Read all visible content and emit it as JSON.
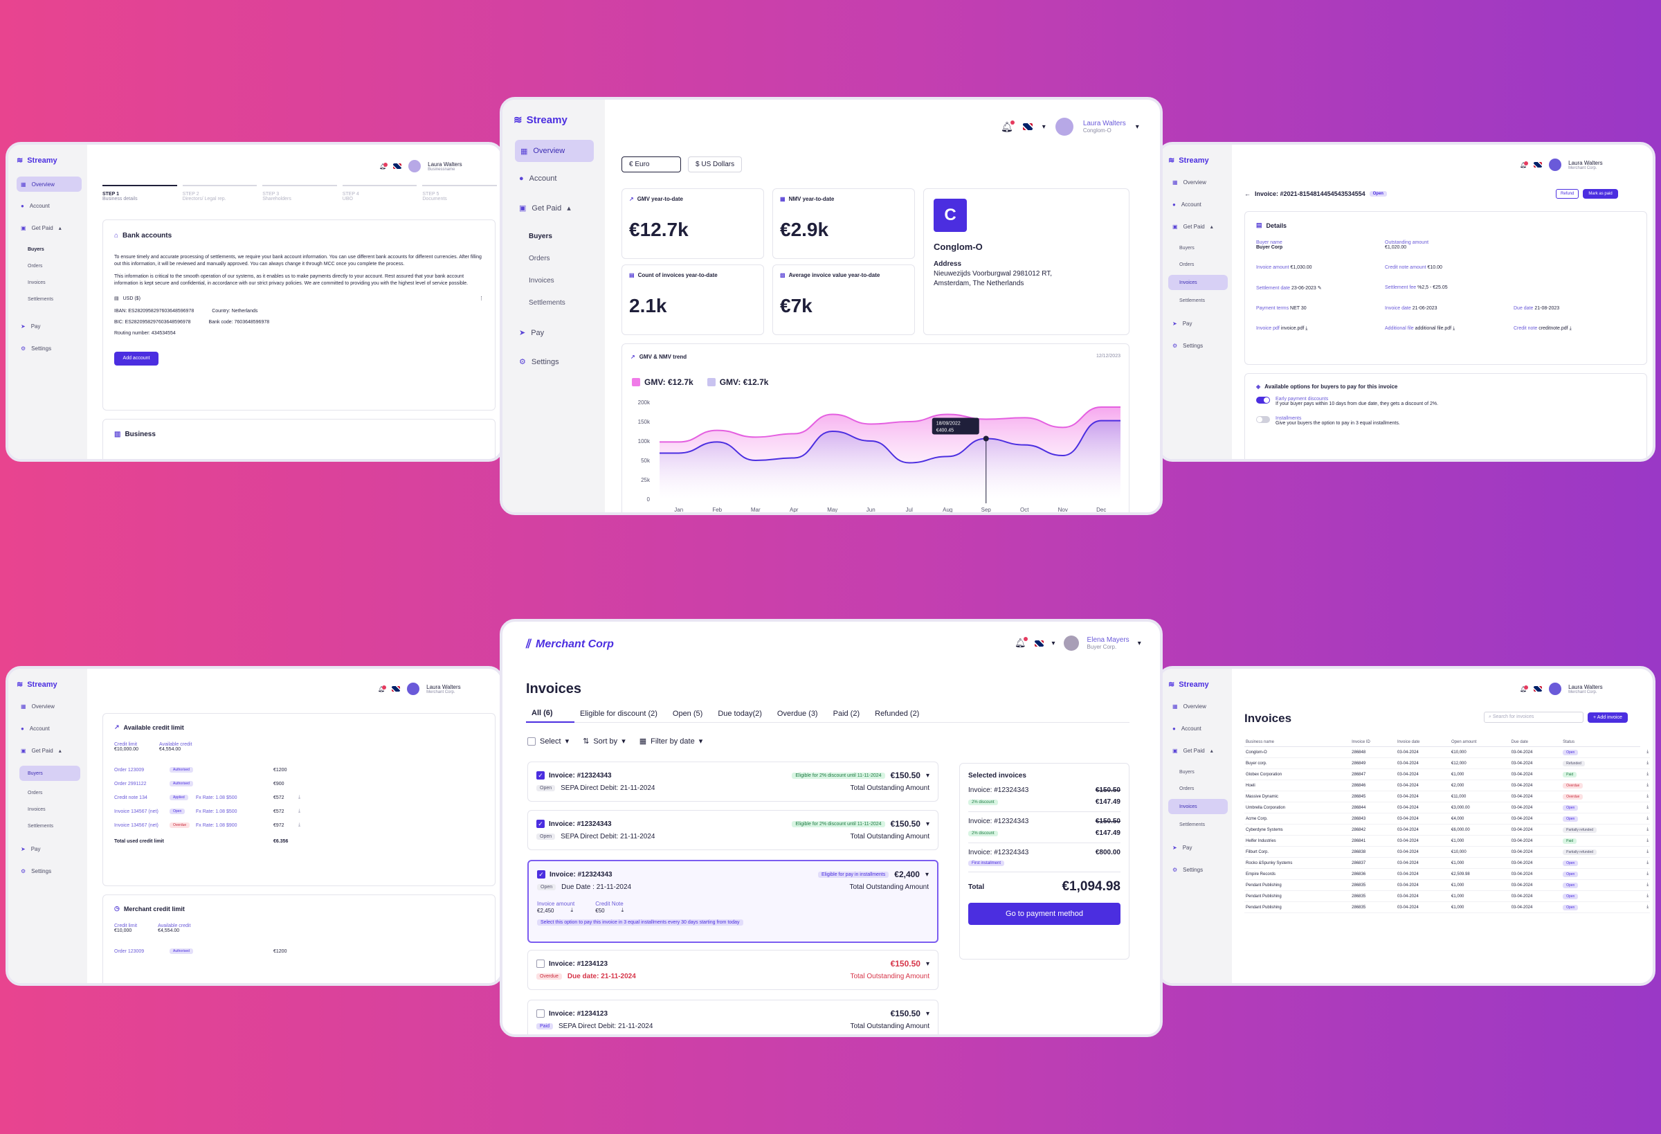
{
  "colors": {
    "accent": "#4b2ee0",
    "gmv": "#e45fe0",
    "nmv": "#4b2ee0",
    "bg_left": "#e8448f",
    "bg_right": "#9a38c6"
  },
  "brand": {
    "streamy": "Streamy",
    "merchant": "Merchant Corp"
  },
  "nav": {
    "overview": "Overview",
    "account": "Account",
    "get_paid": "Get Paid",
    "buyers": "Buyers",
    "orders": "Orders",
    "invoices": "Invoices",
    "settlements": "Settlements",
    "pay": "Pay",
    "settings": "Settings"
  },
  "users": {
    "laura": "Laura Walters",
    "laura_sub_a": "Businessname",
    "laura_sub_b": "Conglom-O",
    "laura_sub_c": "Merchant Corp.",
    "elena": "Elena Mayers",
    "elena_sub": "Buyer Corp."
  },
  "w1": {
    "steps": [
      {
        "num": "STEP 1",
        "label": "Business details"
      },
      {
        "num": "STEP 2",
        "label": "Directors/ Legal rep."
      },
      {
        "num": "STEP 3",
        "label": "Shareholders"
      },
      {
        "num": "STEP 4",
        "label": "UBO"
      },
      {
        "num": "STEP 5",
        "label": "Documents"
      }
    ],
    "title": "Bank accounts",
    "p1": "To ensure timely and accurate processing of settlements, we require your bank account information. You can use different bank accounts for different currencies. After filling out this information, it will be reviewed and manually approved. You can always change it through MCC once you complete the process.",
    "p2": "This information is critical to the smooth operation of our systems, as it enables us to make payments directly to your account. Rest assured that your bank account information is kept secure and confidential, in accordance with our strict privacy policies. We are committed to providing you with the highest level of service possible.",
    "currency": "USD ($)",
    "iban": "IBAN: ES2820958297603648596978",
    "country": "Country: Netherlands",
    "bic": "BIC: ES2820958297603648596978",
    "bank_code": "Bank code: 7603648596978",
    "routing": "Routing number: 434534554",
    "add": "Add account",
    "business": "Business"
  },
  "w2": {
    "cur_euro": "Euro",
    "cur_usd": "US Dollars",
    "gmv_label": "GMV year-to-date",
    "gmv": "€12.7k",
    "nmv_label": "NMV year-to-date",
    "nmv": "€2.9k",
    "count_label": "Count of invoices year-to-date",
    "count": "2.1k",
    "avg_label": "Average invoice value year-to-date",
    "avg": "€7k",
    "company_letter": "C",
    "company": "Conglom-O",
    "address_label": "Address",
    "address": "Nieuwezijds Voorburgwal 2981012 RT, Amsterdam, The Netherlands",
    "trend_title": "GMV & NMV trend",
    "trend_date": "12/12/2023",
    "legend_gmv": "GMV: €12.7k",
    "legend_nmv": "GMV: €12.7k",
    "tooltip_date": "18/09/2022",
    "tooltip_val": "€400.45"
  },
  "chart_data": {
    "type": "area",
    "title": "GMV & NMV trend",
    "categories": [
      "Jan",
      "Feb",
      "Mar",
      "Apr",
      "May",
      "Jun",
      "Jul",
      "Aug",
      "Sep",
      "Oct",
      "Nov",
      "Dec"
    ],
    "yticks": [
      "0",
      "25k",
      "50k",
      "100k",
      "150k",
      "200k"
    ],
    "ylim": [
      0,
      200
    ],
    "series": [
      {
        "name": "GMV: €12.7k",
        "values": [
          118,
          142,
          128,
          135,
          175,
          155,
          160,
          175,
          165,
          168,
          148,
          190
        ]
      },
      {
        "name": "GMV: €12.7k",
        "values": [
          95,
          118,
          80,
          85,
          140,
          120,
          75,
          88,
          125,
          112,
          90,
          162
        ]
      }
    ],
    "legend": "top-left",
    "grid": false
  },
  "w3": {
    "invoice_title": "Invoice: #2021-8154814454543534554",
    "status": "Open",
    "refund": "Refund",
    "mark_paid": "Mark as paid",
    "details": "Details",
    "fields": [
      {
        "k": "Buyer name",
        "v": "Buyer Corp"
      },
      {
        "k": "Outstanding amount",
        "v": "€1,020.00"
      },
      {
        "k": "Invoice amount",
        "v": "€1,030.00"
      },
      {
        "k": "Credit note amount",
        "v": "€10.00"
      },
      {
        "k": "Settlement date",
        "v": "23-06-2023"
      },
      {
        "k": "Settlement fee",
        "v": "%2,5 - €25.05"
      },
      {
        "k": "Payment terms",
        "v": "NET 30"
      },
      {
        "k": "Invoice date",
        "v": "21-06-2023"
      },
      {
        "k": "Due date",
        "v": "21-08-2023"
      },
      {
        "k": "Invoice pdf",
        "v": "invoice.pdf"
      },
      {
        "k": "Additional file",
        "v": "additional file.pdf"
      },
      {
        "k": "Credit note",
        "v": "creditnote.pdf"
      }
    ],
    "options_title": "Available options for buyers to pay for this invoice",
    "early": "Early payment discounts",
    "early_desc": "If your buyer pays within 10 days from due date, they gets a discount of 2%.",
    "inst": "Installments",
    "inst_desc": "Give your buyers the option to pay in 3 equal installments."
  },
  "w4": {
    "avail_title": "Available credit limit",
    "credit_limit": "Credit limit",
    "credit_val": "€10,000.00",
    "available": "Available credit",
    "available_val": "€4,554.00",
    "rows": [
      {
        "name": "Order 123009",
        "badge": "Authorised",
        "fx": "",
        "amt": "€1200"
      },
      {
        "name": "Order 2991122",
        "badge": "Authorised",
        "fx": "",
        "amt": "€900"
      },
      {
        "name": "Credit note 134",
        "badge": "Applied",
        "fx": "Fx Rate: 1.08 $500",
        "amt": "€572"
      },
      {
        "name": "Invoice 134567 (net)",
        "badge": "Open",
        "fx": "Fx Rate: 1.08 $500",
        "amt": "€572"
      },
      {
        "name": "Invoice 134567 (net)",
        "badge": "Overdue",
        "fx": "Fx Rate: 1.08 $900",
        "amt": "€972"
      }
    ],
    "total_label": "Total used credit limit",
    "total": "€6.356",
    "merchant_title": "Merchant credit limit",
    "m_credit": "€10,000",
    "m_avail": "€4,554.00",
    "m_row": {
      "name": "Order 123009",
      "badge": "Authorised",
      "amt": "€1200"
    }
  },
  "w5": {
    "title": "Invoices",
    "tabs": [
      "All (6)",
      "Eligible for discount (2)",
      "Open (5)",
      "Due today(2)",
      "Overdue (3)",
      "Paid (2)",
      "Refunded (2)"
    ],
    "select": "Select",
    "sort": "Sort by",
    "filter": "Filter by date",
    "inv": [
      {
        "title": "Invoice: #12324343",
        "tag": "Eligible for 2% discount until 11-11-2024",
        "amt": "€150.50",
        "badge": "Open",
        "sub": "SEPA Direct Debit: 21-11-2024",
        "right": "Total Outstanding Amount"
      },
      {
        "title": "Invoice: #12324343",
        "tag": "Eligible for 2% discount until 11-11-2024",
        "amt": "€150.50",
        "badge": "Open",
        "sub": "SEPA Direct Debit: 21-11-2024",
        "right": "Total Outstanding Amount"
      },
      {
        "title": "Invoice: #12324343",
        "tag": "Eligible for pay in installments",
        "amt": "€2,400",
        "badge": "Open",
        "sub": "Due Date : 21-11-2024",
        "right": "Total Outstanding Amount"
      },
      {
        "title": "Invoice: #1234123",
        "tag": "",
        "amt": "€150.50",
        "badge": "Overdue",
        "sub": "Due date: 21-11-2024",
        "right": "Total Outstanding Amount"
      },
      {
        "title": "Invoice: #1234123",
        "tag": "",
        "amt": "€150.50",
        "badge": "Paid",
        "sub": "SEPA Direct Debit: 21-11-2024",
        "right": "Total Outstanding Amount"
      }
    ],
    "inv3_amount_label": "Invoice amount",
    "inv3_amount": "€2,450",
    "inv3_cn_label": "Credit Note",
    "inv3_cn": "€50",
    "inv3_note": "Select this option to pay this invoice in 3 equal installments every 30 days starting from today",
    "sel_title": "Selected invoices",
    "sel": [
      {
        "name": "Invoice: #12324343",
        "old": "€150.50",
        "tag": "2% discount",
        "new": "€147.49"
      },
      {
        "name": "Invoice: #12324343",
        "old": "€150.50",
        "tag": "2% discount",
        "new": "€147.49"
      },
      {
        "name": "Invoice: #12324343",
        "old": "",
        "tag": "First installment",
        "new": "€800.00"
      }
    ],
    "total_label": "Total",
    "total": "€1,094.98",
    "go": "Go to payment method"
  },
  "w6": {
    "title": "Invoices",
    "search": "Search for invoices",
    "add": "Add invoice",
    "headers": [
      "Business name",
      "Invoice ID",
      "Invoice date",
      "Open amount",
      "Due date",
      "Status"
    ],
    "rows": [
      [
        "Conglom-O",
        "286848",
        "03-04-2024",
        "€10,000",
        "03-04-2024",
        "Open"
      ],
      [
        "Buyer corp.",
        "286849",
        "03-04-2024",
        "€12,000",
        "03-04-2024",
        "Refunded"
      ],
      [
        "Globex Corporation",
        "286847",
        "03-04-2024",
        "€1,000",
        "03-04-2024",
        "Paid"
      ],
      [
        "Hoeli",
        "286846",
        "03-04-2024",
        "€2,000",
        "03-04-2024",
        "Overdue"
      ],
      [
        "Massive Dynamic",
        "286845",
        "03-04-2024",
        "€11,000",
        "03-04-2024",
        "Overdue"
      ],
      [
        "Umbrella Corporation",
        "286844",
        "03-04-2024",
        "€3,000.00",
        "03-04-2024",
        "Open"
      ],
      [
        "Acme Corp.",
        "286843",
        "03-04-2024",
        "€4,000",
        "03-04-2024",
        "Open"
      ],
      [
        "Cyberdyne Systems",
        "286842",
        "03-04-2024",
        "€6,000.00",
        "03-04-2024",
        "Partially refunded"
      ],
      [
        "Helfer Industries",
        "286841",
        "03-04-2024",
        "€1,000",
        "03-04-2024",
        "Paid"
      ],
      [
        "Filburt Corp.",
        "286838",
        "03-04-2024",
        "€10,000",
        "03-04-2024",
        "Partially refunded"
      ],
      [
        "Rocko &Spunky Systems",
        "286837",
        "03-04-2024",
        "€1,000",
        "03-04-2024",
        "Open"
      ],
      [
        "Empire Records",
        "286836",
        "03-04-2024",
        "€2,509.98",
        "03-04-2024",
        "Open"
      ],
      [
        "Pendant Publishing",
        "286835",
        "03-04-2024",
        "€1,000",
        "03-04-2024",
        "Open"
      ],
      [
        "Pendant Publishing",
        "286835",
        "03-04-2024",
        "€1,000",
        "03-04-2024",
        "Open"
      ],
      [
        "Pendant Publishing",
        "286835",
        "03-04-2024",
        "€1,000",
        "03-04-2024",
        "Open"
      ]
    ]
  }
}
